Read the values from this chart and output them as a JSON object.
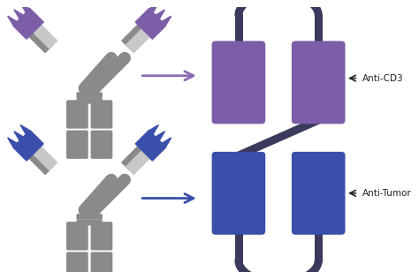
{
  "bg_color": "#ffffff",
  "body_color": "#8a8a8a",
  "light_chain_color": "#c8c8c8",
  "purple_color": "#7b5ea7",
  "blue_color": "#3a4faa",
  "linker_color": "#3a3a5c",
  "arrow_purple": "#8b6ab5",
  "arrow_blue": "#3a4faa",
  "label_color": "#222222",
  "anti_cd3_label": "Anti-CD3",
  "anti_tumor_label": "Anti-Tumor",
  "figsize": [
    4.74,
    3.16
  ],
  "dpi": 100
}
